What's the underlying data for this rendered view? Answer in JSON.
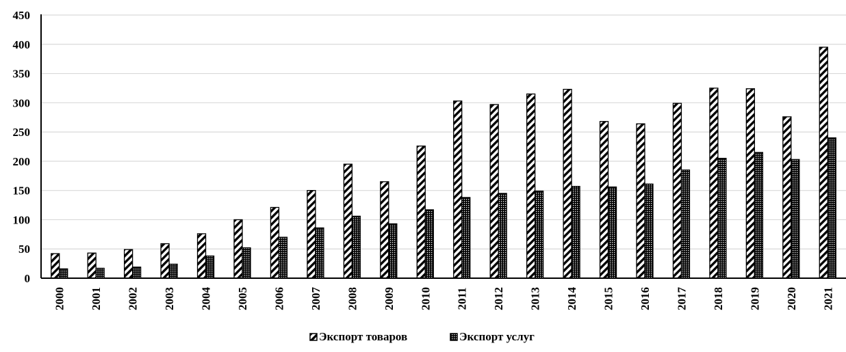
{
  "chart_data": {
    "type": "bar",
    "categories": [
      "2000",
      "2001",
      "2002",
      "2003",
      "2004",
      "2005",
      "2006",
      "2007",
      "2008",
      "2009",
      "2010",
      "2011",
      "2012",
      "2013",
      "2014",
      "2015",
      "2016",
      "2017",
      "2018",
      "2019",
      "2020",
      "2021"
    ],
    "series": [
      {
        "name": "Экспорт товаров",
        "values": [
          42,
          43,
          49,
          59,
          76,
          100,
          121,
          150,
          195,
          165,
          226,
          303,
          297,
          315,
          323,
          268,
          264,
          299,
          325,
          324,
          276,
          395
        ]
      },
      {
        "name": "Экспорт услуг",
        "values": [
          16,
          17,
          19,
          24,
          38,
          52,
          70,
          86,
          106,
          93,
          117,
          138,
          145,
          149,
          157,
          156,
          161,
          185,
          205,
          215,
          203,
          240
        ]
      }
    ],
    "yticks": [
      "0",
      "50",
      "100",
      "150",
      "200",
      "250",
      "300",
      "350",
      "400",
      "450"
    ],
    "ylim": [
      0,
      450
    ],
    "grid": true,
    "legend_position": "bottom-center",
    "xlabel": "",
    "ylabel": "",
    "title": ""
  }
}
